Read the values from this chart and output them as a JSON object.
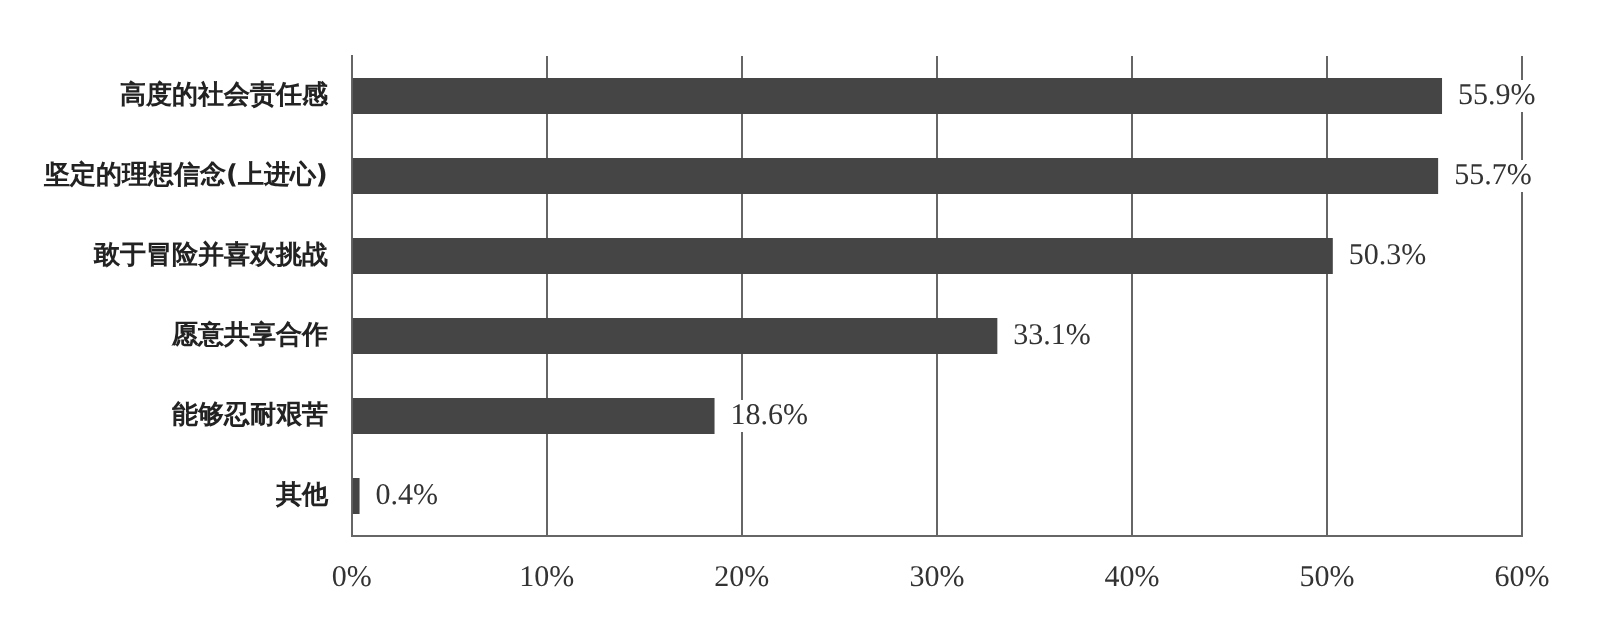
{
  "chart_data": {
    "type": "bar",
    "orientation": "horizontal",
    "categories": [
      "高度的社会责任感",
      "坚定的理想信念(上进心)",
      "敢于冒险并喜欢挑战",
      "愿意共享合作",
      "能够忍耐艰苦",
      "其他"
    ],
    "values": [
      55.9,
      55.7,
      50.3,
      33.1,
      18.6,
      0.4
    ],
    "value_labels": [
      "55.9%",
      "55.7%",
      "50.3%",
      "33.1%",
      "18.6%",
      "0.4%"
    ],
    "color": "#454545",
    "xlim": [
      0,
      60
    ],
    "xticks": [
      {
        "value": 0,
        "label": "0%"
      },
      {
        "value": 10,
        "label": "10%"
      },
      {
        "value": 20,
        "label": "20%"
      },
      {
        "value": 30,
        "label": "30%"
      },
      {
        "value": 40,
        "label": "40%"
      },
      {
        "value": 50,
        "label": "50%"
      },
      {
        "value": 60,
        "label": "60%"
      }
    ],
    "grid": "x",
    "legend": false
  }
}
